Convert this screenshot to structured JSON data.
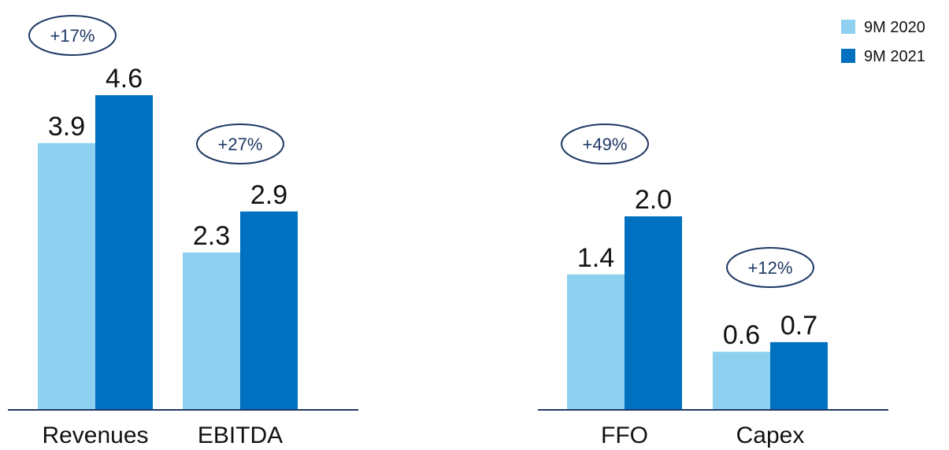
{
  "chart_data": [
    {
      "type": "bar",
      "categories": [
        "Revenues",
        "EBITDA"
      ],
      "series": [
        {
          "name": "9M 2020",
          "color": "#8dd0f0",
          "values": [
            3.9,
            2.3
          ],
          "value_labels": [
            "3.9",
            "2.3"
          ]
        },
        {
          "name": "9M 2021",
          "color": "#0070c0",
          "values": [
            4.6,
            2.9
          ],
          "value_labels": [
            "4.6",
            "2.9"
          ]
        }
      ],
      "annotations": [
        "+17%",
        "+27%"
      ],
      "legend": "top-right"
    },
    {
      "type": "bar",
      "categories": [
        "FFO",
        "Capex"
      ],
      "series": [
        {
          "name": "9M 2020",
          "color": "#8dd0f0",
          "values": [
            1.4,
            0.6
          ],
          "value_labels": [
            "1.4",
            "0.6"
          ]
        },
        {
          "name": "9M 2021",
          "color": "#0070c0",
          "values": [
            2.0,
            0.7
          ],
          "value_labels": [
            "2.0",
            "0.7"
          ]
        }
      ],
      "annotations": [
        "+49%",
        "+12%"
      ]
    }
  ]
}
